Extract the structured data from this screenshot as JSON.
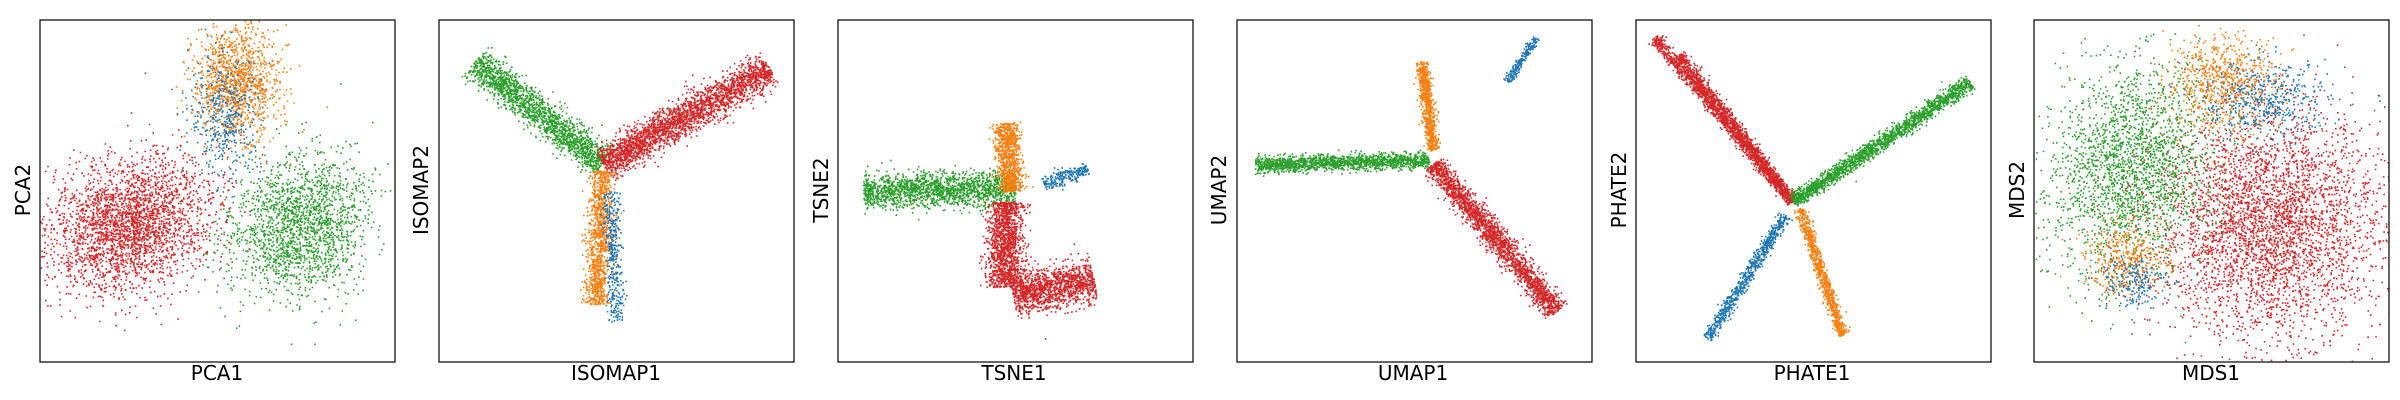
{
  "figure": {
    "panel_count": 6,
    "colors": {
      "blue": "#1f77b4",
      "orange": "#ff7f0e",
      "green": "#2ca02c",
      "red": "#d62728"
    }
  },
  "chart_data": [
    {
      "type": "scatter",
      "title": "",
      "xlabel": "PCA1",
      "ylabel": "PCA2",
      "xlim": [
        0,
        100
      ],
      "ylim": [
        0,
        100
      ],
      "grid": false,
      "ticks": false,
      "clusters": [
        {
          "color": "red",
          "shape": "blob",
          "cx": 25,
          "cy": 40,
          "sx": 12,
          "sy": 9,
          "rot": 25,
          "count": 2800
        },
        {
          "color": "green",
          "shape": "blob",
          "cx": 73,
          "cy": 40,
          "sx": 9,
          "sy": 11,
          "rot": -40,
          "count": 1900
        },
        {
          "color": "orange",
          "shape": "blob",
          "cx": 55,
          "cy": 82,
          "sx": 6,
          "sy": 8,
          "rot": 0,
          "count": 1200
        },
        {
          "color": "blue",
          "shape": "blob",
          "cx": 52,
          "cy": 72,
          "sx": 5,
          "sy": 9,
          "rot": 0,
          "count": 450
        }
      ]
    },
    {
      "type": "scatter",
      "title": "",
      "xlabel": "ISOMAP1",
      "ylabel": "ISOMAP2",
      "xlim": [
        0,
        100
      ],
      "ylim": [
        0,
        100
      ],
      "grid": false,
      "ticks": false,
      "clusters": [
        {
          "color": "green",
          "shape": "band",
          "x0": 10,
          "y0": 88,
          "x1": 46,
          "y1": 58,
          "width": 4.5,
          "count": 1800
        },
        {
          "color": "red",
          "shape": "band",
          "x0": 46,
          "y0": 58,
          "x1": 93,
          "y1": 86,
          "width": 5,
          "count": 2600
        },
        {
          "color": "orange",
          "shape": "band",
          "x0": 46,
          "y0": 56,
          "x1": 44,
          "y1": 17,
          "width": 3.5,
          "count": 1100
        },
        {
          "color": "blue",
          "shape": "band",
          "x0": 48,
          "y0": 50,
          "x1": 50,
          "y1": 12,
          "width": 2.5,
          "count": 380
        }
      ]
    },
    {
      "type": "scatter",
      "title": "",
      "xlabel": "TSNE1",
      "ylabel": "TSNE2",
      "xlim": [
        0,
        100
      ],
      "ylim": [
        0,
        100
      ],
      "grid": false,
      "ticks": false,
      "clusters": [
        {
          "color": "green",
          "shape": "band",
          "x0": 7,
          "y0": 50,
          "x1": 50,
          "y1": 51,
          "width": 5,
          "count": 1800
        },
        {
          "color": "blue",
          "shape": "band",
          "x0": 58,
          "y0": 52,
          "x1": 70,
          "y1": 57,
          "width": 2.2,
          "count": 250
        },
        {
          "color": "red",
          "shape": "band",
          "x0": 47,
          "y0": 47,
          "x1": 47,
          "y1": 22,
          "width": 5,
          "count": 1400
        },
        {
          "color": "red",
          "shape": "band",
          "x0": 49,
          "y0": 20,
          "x1": 72,
          "y1": 24,
          "width": 6,
          "count": 1300
        },
        {
          "color": "orange",
          "shape": "band",
          "x0": 47,
          "y0": 70,
          "x1": 49,
          "y1": 50,
          "width": 3.5,
          "count": 900
        }
      ]
    },
    {
      "type": "scatter",
      "title": "",
      "xlabel": "UMAP1",
      "ylabel": "UMAP2",
      "xlim": [
        0,
        100
      ],
      "ylim": [
        0,
        100
      ],
      "grid": false,
      "ticks": false,
      "clusters": [
        {
          "color": "green",
          "shape": "band",
          "x0": 5,
          "y0": 58,
          "x1": 54,
          "y1": 59,
          "width": 2.3,
          "count": 1600
        },
        {
          "color": "orange",
          "shape": "band",
          "x0": 52,
          "y0": 88,
          "x1": 55,
          "y1": 62,
          "width": 1.8,
          "count": 750
        },
        {
          "color": "red",
          "shape": "band",
          "x0": 55,
          "y0": 58,
          "x1": 90,
          "y1": 15,
          "width": 3.3,
          "count": 2200
        },
        {
          "color": "blue",
          "shape": "band",
          "x0": 76,
          "y0": 82,
          "x1": 84,
          "y1": 95,
          "width": 1.2,
          "count": 230
        }
      ]
    },
    {
      "type": "scatter",
      "title": "",
      "xlabel": "PHATE1",
      "ylabel": "PHATE2",
      "xlim": [
        0,
        100
      ],
      "ylim": [
        0,
        100
      ],
      "grid": false,
      "ticks": false,
      "clusters": [
        {
          "color": "red",
          "shape": "band",
          "x0": 5,
          "y0": 95,
          "x1": 44,
          "y1": 47,
          "width": 1.8,
          "count": 1300
        },
        {
          "color": "red",
          "shape": "band",
          "x0": 12,
          "y0": 90,
          "x1": 44,
          "y1": 47,
          "width": 1.8,
          "count": 1100
        },
        {
          "color": "green",
          "shape": "band",
          "x0": 44,
          "y0": 47,
          "x1": 94,
          "y1": 82,
          "width": 2.2,
          "count": 1900
        },
        {
          "color": "orange",
          "shape": "band",
          "x0": 46,
          "y0": 45,
          "x1": 58,
          "y1": 8,
          "width": 1.6,
          "count": 850
        },
        {
          "color": "blue",
          "shape": "band",
          "x0": 42,
          "y0": 43,
          "x1": 20,
          "y1": 7,
          "width": 1.8,
          "count": 750
        }
      ]
    },
    {
      "type": "scatter",
      "title": "",
      "xlabel": "MDS1",
      "ylabel": "MDS2",
      "xlim": [
        0,
        100
      ],
      "ylim": [
        0,
        100
      ],
      "grid": false,
      "ticks": false,
      "clusters": [
        {
          "color": "red",
          "shape": "blob",
          "cx": 66,
          "cy": 40,
          "sx": 16,
          "sy": 16,
          "rot": 0,
          "count": 3800
        },
        {
          "color": "green",
          "shape": "blob",
          "cx": 27,
          "cy": 57,
          "sx": 11,
          "sy": 15,
          "rot": -15,
          "count": 2200
        },
        {
          "color": "orange",
          "shape": "blob",
          "cx": 53,
          "cy": 82,
          "sx": 8,
          "sy": 7,
          "rot": 0,
          "count": 700
        },
        {
          "color": "blue",
          "shape": "blob",
          "cx": 65,
          "cy": 76,
          "sx": 9,
          "sy": 6,
          "rot": 0,
          "count": 500
        },
        {
          "color": "orange",
          "shape": "blob",
          "cx": 26,
          "cy": 30,
          "sx": 6,
          "sy": 5,
          "rot": 0,
          "count": 380
        },
        {
          "color": "blue",
          "shape": "blob",
          "cx": 27,
          "cy": 24,
          "sx": 5,
          "sy": 4,
          "rot": 0,
          "count": 220
        }
      ]
    }
  ]
}
